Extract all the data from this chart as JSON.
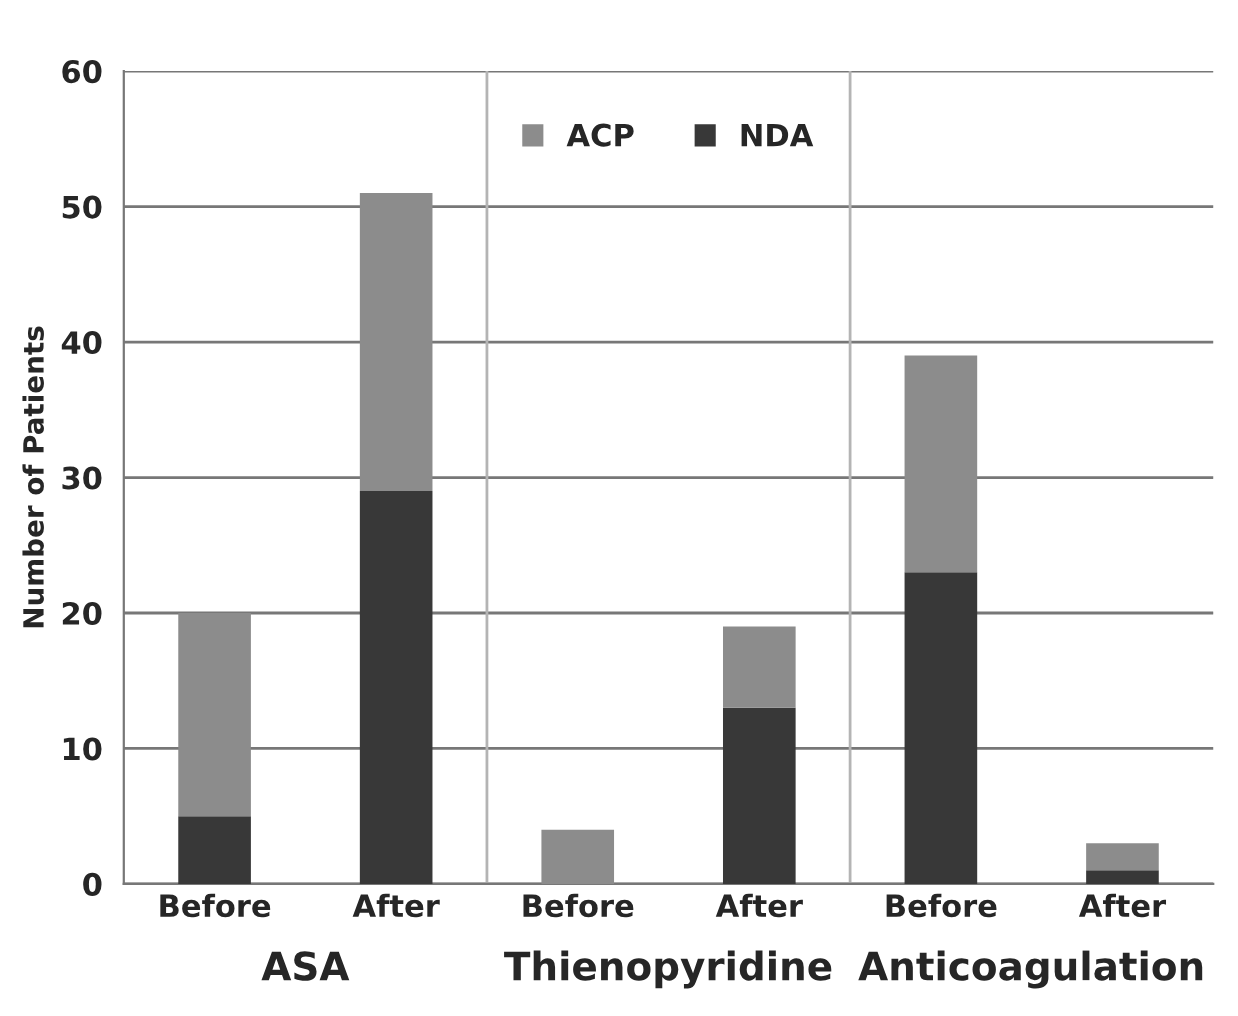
{
  "chart_data": {
    "type": "bar",
    "stacked": true,
    "ylabel": "Number of Patients",
    "categories": [
      "Before",
      "After",
      "Before",
      "After",
      "Before",
      "After"
    ],
    "series": [
      {
        "name": "NDA",
        "color": "#383838",
        "values": [
          5,
          29,
          0,
          13,
          23,
          1
        ]
      },
      {
        "name": "ACP",
        "color": "#8c8c8c",
        "values": [
          15,
          22,
          4,
          6,
          16,
          2
        ]
      }
    ],
    "ylim": [
      0,
      60
    ],
    "yticks": [
      0,
      10,
      20,
      30,
      40,
      50,
      60
    ],
    "grid": "y",
    "legend": "top",
    "annotations": [
      "ASA",
      "Thienopyridine",
      "Anticoagulation"
    ]
  }
}
